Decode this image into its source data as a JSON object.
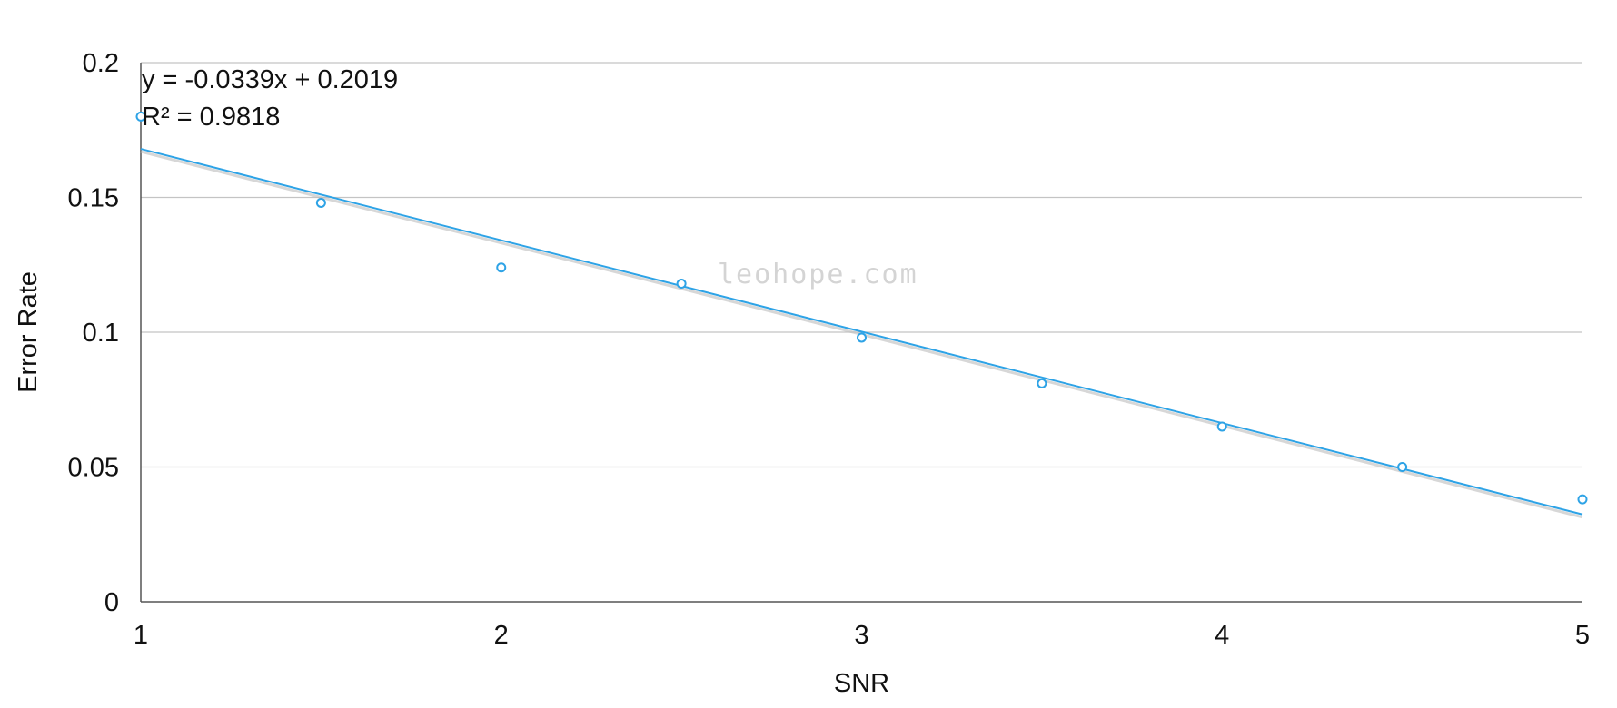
{
  "chart_data": {
    "type": "scatter",
    "xlabel": "SNR",
    "ylabel": "Error Rate",
    "xlim": [
      1,
      5
    ],
    "ylim": [
      0,
      0.2
    ],
    "x_ticks": [
      "1",
      "2",
      "3",
      "4",
      "5"
    ],
    "y_ticks": [
      "0",
      "0.05",
      "0.1",
      "0.15",
      "0.2"
    ],
    "grid": "horizontal",
    "points": [
      {
        "x": 1.0,
        "y": 0.18
      },
      {
        "x": 1.5,
        "y": 0.148
      },
      {
        "x": 2.0,
        "y": 0.124
      },
      {
        "x": 2.5,
        "y": 0.118
      },
      {
        "x": 3.0,
        "y": 0.098
      },
      {
        "x": 3.5,
        "y": 0.081
      },
      {
        "x": 4.0,
        "y": 0.065
      },
      {
        "x": 4.5,
        "y": 0.05
      },
      {
        "x": 5.0,
        "y": 0.038
      }
    ],
    "trendline": {
      "slope": -0.0339,
      "intercept": 0.2019
    },
    "annotations": [
      "y = -0.0339x + 0.2019",
      "R² = 0.9818"
    ],
    "watermark": "leohope.com",
    "colors": {
      "series": "#2ea3e6",
      "grid": "#c4c4c4",
      "axis": "#555555",
      "trend_shadow": "#bdbdbd"
    }
  }
}
